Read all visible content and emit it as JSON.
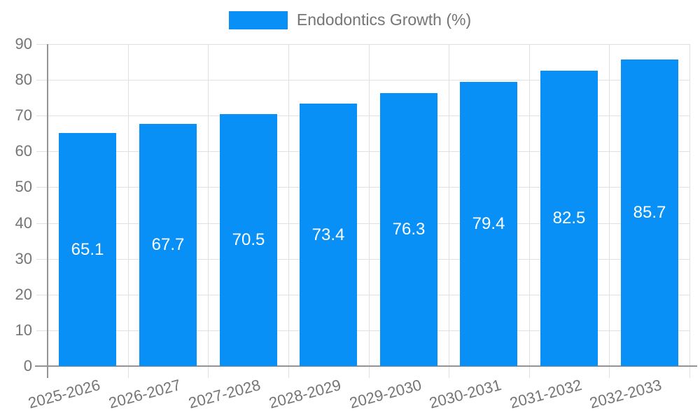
{
  "legend": {
    "swatch_icon": "series-color-swatch"
  },
  "chart_data": {
    "type": "bar",
    "title": "Endodontics Growth (%)",
    "categories": [
      "2025-2026",
      "2026-2027",
      "2027-2028",
      "2028-2029",
      "2029-2030",
      "2030-2031",
      "2031-2032",
      "2032-2033"
    ],
    "values": [
      65.1,
      67.7,
      70.5,
      73.4,
      76.3,
      79.4,
      82.5,
      85.7
    ],
    "value_labels": [
      "65.1",
      "67.7",
      "70.5",
      "73.4",
      "76.3",
      "79.4",
      "82.5",
      "85.7"
    ],
    "xlabel": "",
    "ylabel": "",
    "ylim": [
      0,
      90
    ],
    "ytick_step": 10,
    "ytick_labels": [
      "0",
      "10",
      "20",
      "30",
      "40",
      "50",
      "60",
      "70",
      "80",
      "90"
    ],
    "grid": true,
    "legend_position": "top",
    "colors": {
      "bar": "#0890F7",
      "value_text": "#ffffff",
      "axis_text": "#757575",
      "gridline": "#e0e0e0",
      "axis_line": "#949494",
      "legend_text": "#757575"
    }
  }
}
